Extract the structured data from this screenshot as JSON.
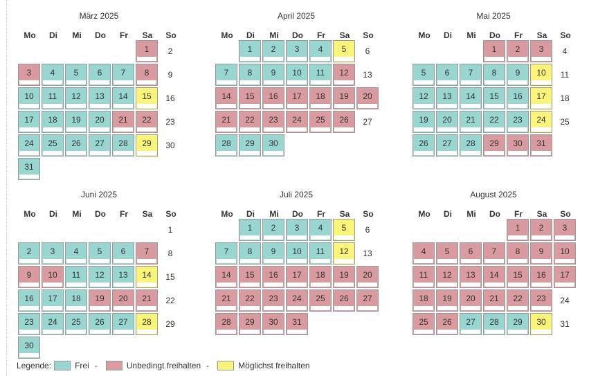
{
  "colors": {
    "free": "#99d6cf",
    "blocked": "#d99ba0",
    "preferred": "#fbf47a"
  },
  "weekdays": [
    "Mo",
    "Di",
    "Mi",
    "Do",
    "Fr",
    "Sa",
    "So"
  ],
  "months": [
    {
      "title": "März 2025",
      "offset": 5,
      "days": 31,
      "status": [
        "b",
        "n",
        "b",
        "f",
        "f",
        "f",
        "f",
        "b",
        "n",
        "f",
        "f",
        "f",
        "f",
        "f",
        "p",
        "n",
        "f",
        "f",
        "f",
        "f",
        "b",
        "b",
        "n",
        "f",
        "f",
        "f",
        "f",
        "f",
        "p",
        "n",
        "f"
      ]
    },
    {
      "title": "April 2025",
      "offset": 1,
      "days": 30,
      "status": [
        "f",
        "f",
        "f",
        "f",
        "p",
        "n",
        "f",
        "f",
        "f",
        "f",
        "f",
        "b",
        "n",
        "b",
        "b",
        "b",
        "b",
        "b",
        "b",
        "b",
        "b",
        "b",
        "b",
        "b",
        "b",
        "b",
        "n",
        "f",
        "f",
        "f"
      ]
    },
    {
      "title": "Mai 2025",
      "offset": 3,
      "days": 31,
      "status": [
        "b",
        "b",
        "b",
        "n",
        "f",
        "f",
        "f",
        "f",
        "f",
        "p",
        "n",
        "f",
        "f",
        "f",
        "f",
        "f",
        "p",
        "n",
        "f",
        "f",
        "f",
        "f",
        "f",
        "p",
        "n",
        "f",
        "f",
        "f",
        "b",
        "b",
        "b"
      ]
    },
    {
      "title": "Juni 2025",
      "offset": 6,
      "days": 30,
      "status": [
        "n",
        "f",
        "f",
        "f",
        "f",
        "f",
        "b",
        "n",
        "b",
        "b",
        "f",
        "f",
        "f",
        "p",
        "n",
        "f",
        "f",
        "f",
        "b",
        "b",
        "b",
        "n",
        "f",
        "f",
        "f",
        "f",
        "f",
        "p",
        "n",
        "f"
      ]
    },
    {
      "title": "Juli 2025",
      "offset": 1,
      "days": 31,
      "status": [
        "f",
        "f",
        "f",
        "f",
        "p",
        "n",
        "f",
        "f",
        "f",
        "f",
        "f",
        "p",
        "n",
        "b",
        "b",
        "b",
        "b",
        "b",
        "b",
        "b",
        "b",
        "b",
        "b",
        "b",
        "b",
        "b",
        "b",
        "b",
        "b",
        "b",
        "b"
      ]
    },
    {
      "title": "August 2025",
      "offset": 4,
      "days": 31,
      "status": [
        "b",
        "b",
        "b",
        "b",
        "b",
        "b",
        "b",
        "b",
        "b",
        "b",
        "b",
        "b",
        "b",
        "b",
        "b",
        "b",
        "b",
        "b",
        "b",
        "b",
        "b",
        "b",
        "b",
        "n",
        "b",
        "b",
        "f",
        "f",
        "f",
        "p",
        "n"
      ]
    }
  ],
  "legend": {
    "prefix": "Legende:",
    "free": "Frei",
    "blocked": "Unbedingt freihalten",
    "preferred": "Möglichst freihalten",
    "separator": "-"
  }
}
